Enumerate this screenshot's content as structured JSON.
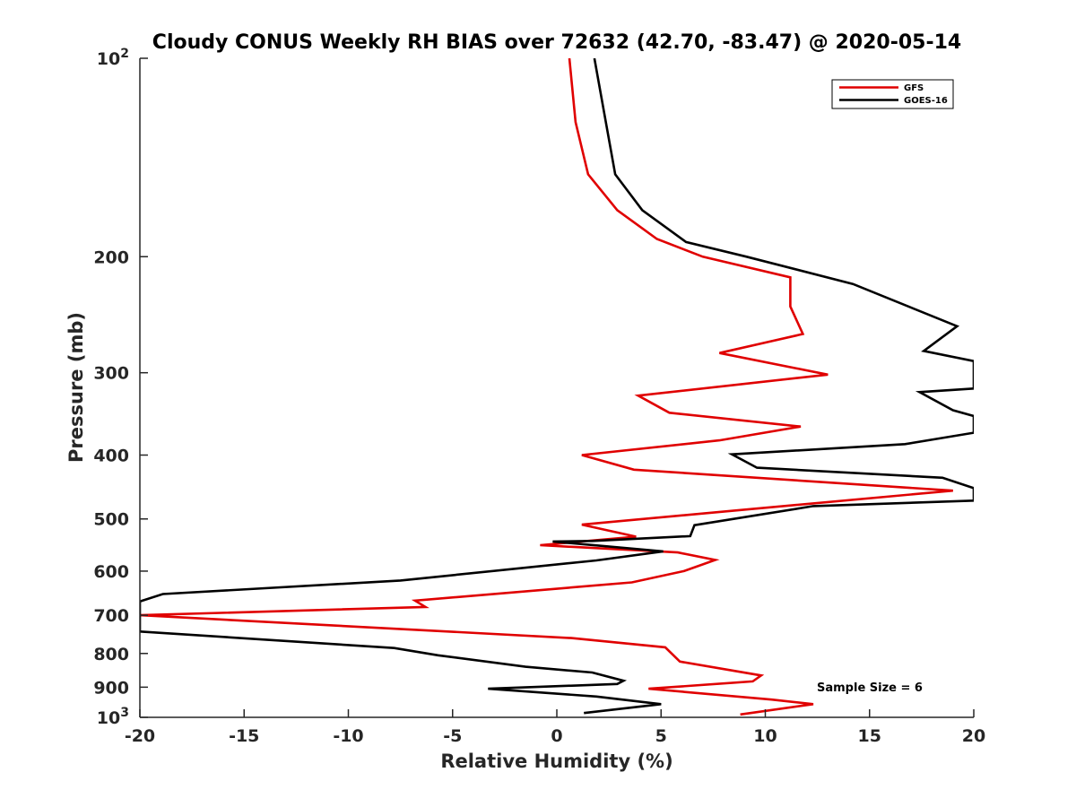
{
  "chart_data": {
    "type": "line",
    "title": "Cloudy CONUS Weekly RH BIAS over 72632 (42.70, -83.47) @ 2020-05-14",
    "xlabel": "Relative Humidity (%)",
    "ylabel": "Pressure (mb)",
    "xlim": [
      -20,
      20
    ],
    "ylim": [
      100,
      1000
    ],
    "yscale": "log",
    "y_reversed": true,
    "x_ticks": [
      "-20",
      "-15",
      "-10",
      "-5",
      "0",
      "5",
      "10",
      "15",
      "20"
    ],
    "x_tick_values": [
      -20,
      -15,
      -10,
      -5,
      0,
      5,
      10,
      15,
      20
    ],
    "y_ticks": [
      {
        "value": 100,
        "label": "10",
        "sup": "2"
      },
      {
        "value": 200,
        "label": "200",
        "sup": ""
      },
      {
        "value": 300,
        "label": "300",
        "sup": ""
      },
      {
        "value": 400,
        "label": "400",
        "sup": ""
      },
      {
        "value": 500,
        "label": "500",
        "sup": ""
      },
      {
        "value": 600,
        "label": "600",
        "sup": ""
      },
      {
        "value": 700,
        "label": "700",
        "sup": ""
      },
      {
        "value": 800,
        "label": "800",
        "sup": ""
      },
      {
        "value": 900,
        "label": "900",
        "sup": ""
      },
      {
        "value": 1000,
        "label": "10",
        "sup": "3"
      }
    ],
    "grid": false,
    "legend_position": "top-right",
    "series": [
      {
        "name": "GFS",
        "color": "#e00000",
        "points": [
          [
            0.6,
            100
          ],
          [
            0.9,
            125
          ],
          [
            1.5,
            150
          ],
          [
            2.9,
            170
          ],
          [
            4.8,
            188
          ],
          [
            7.0,
            200
          ],
          [
            11.2,
            215
          ],
          [
            11.2,
            238
          ],
          [
            11.8,
            262
          ],
          [
            7.8,
            280
          ],
          [
            13.0,
            302
          ],
          [
            3.9,
            325
          ],
          [
            5.4,
            345
          ],
          [
            11.7,
            362
          ],
          [
            7.8,
            380
          ],
          [
            1.2,
            400
          ],
          [
            3.7,
            421
          ],
          [
            19.0,
            453
          ],
          [
            8.4,
            486
          ],
          [
            1.2,
            510
          ],
          [
            3.8,
            532
          ],
          [
            -0.8,
            548
          ],
          [
            5.8,
            562
          ],
          [
            7.6,
            577
          ],
          [
            6.1,
            600
          ],
          [
            3.6,
            624
          ],
          [
            -6.8,
            665
          ],
          [
            -6.3,
            680
          ],
          [
            -20,
            700
          ],
          [
            0.7,
            758
          ],
          [
            5.2,
            783
          ],
          [
            5.9,
            823
          ],
          [
            9.8,
            864
          ],
          [
            9.4,
            882
          ],
          [
            4.4,
            905
          ],
          [
            10.3,
            940
          ],
          [
            12.3,
            955
          ],
          [
            8.8,
            990
          ]
        ]
      },
      {
        "name": "GOES-16",
        "color": "#000000",
        "points": [
          [
            1.8,
            100
          ],
          [
            2.8,
            150
          ],
          [
            4.1,
            170
          ],
          [
            6.2,
            190
          ],
          [
            9.1,
            200
          ],
          [
            14.2,
            220
          ],
          [
            19.2,
            255
          ],
          [
            17.6,
            278
          ],
          [
            20,
            288
          ],
          [
            20,
            317
          ],
          [
            17.4,
            321
          ],
          [
            19.0,
            342
          ],
          [
            20,
            349
          ],
          [
            20,
            370
          ],
          [
            16.7,
            385
          ],
          [
            8.4,
            399
          ],
          [
            9.6,
            418
          ],
          [
            18.5,
            433
          ],
          [
            20,
            449
          ],
          [
            20,
            469
          ],
          [
            12.3,
            478
          ],
          [
            6.6,
            511
          ],
          [
            6.4,
            531
          ],
          [
            1.7,
            540
          ],
          [
            -0.2,
            541
          ],
          [
            5.1,
            560
          ],
          [
            1.9,
            578
          ],
          [
            -7.5,
            620
          ],
          [
            -18.9,
            650
          ],
          [
            -20,
            667
          ],
          [
            -20,
            741
          ],
          [
            -7.8,
            785
          ],
          [
            -5.7,
            805
          ],
          [
            -1.5,
            838
          ],
          [
            1.7,
            855
          ],
          [
            3.2,
            880
          ],
          [
            2.9,
            890
          ],
          [
            -3.3,
            905
          ],
          [
            1.9,
            930
          ],
          [
            5.0,
            955
          ],
          [
            1.3,
            985
          ]
        ]
      }
    ],
    "annotations": [
      {
        "text": "Sample Size = 6"
      }
    ]
  }
}
